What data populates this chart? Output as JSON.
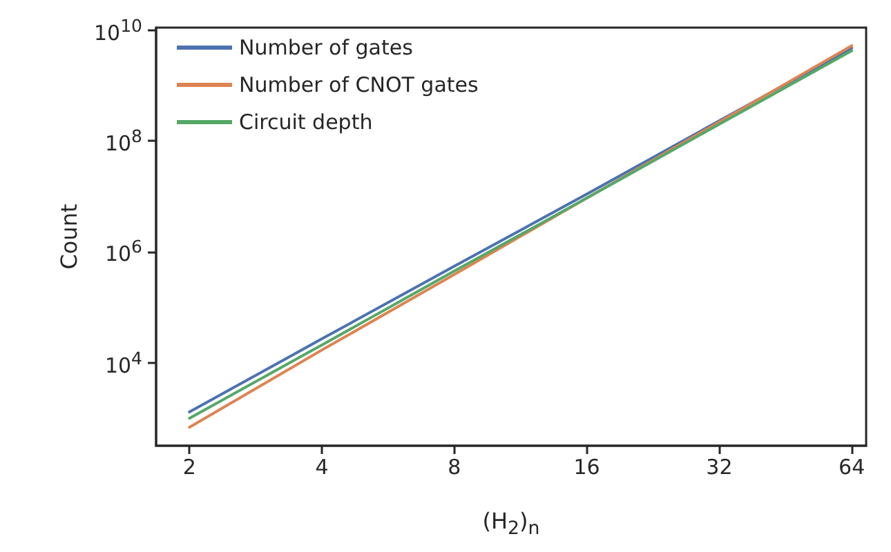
{
  "chart_data": {
    "type": "line",
    "xlabel": "(H$_{2}$)$_{n}$",
    "ylabel": "Count",
    "log": "xy",
    "legend": "top left",
    "x": [
      2,
      4,
      8,
      16,
      32,
      64
    ],
    "xlim": [
      1.68,
      69
    ],
    "xticks": [
      2,
      4,
      8,
      16,
      32,
      64
    ],
    "ylim": [
      320,
      11000000000
    ],
    "yticks": [
      {
        "value": 10000,
        "label": "10$^{4}$"
      },
      {
        "value": 1000000,
        "label": "10$^{6}$"
      },
      {
        "value": 100000000,
        "label": "10$^{8}$"
      },
      {
        "value": 10000000000,
        "label": "10$^{10}$"
      }
    ],
    "series": [
      {
        "name": "Number of gates",
        "color": "#4c72b0",
        "values": [
          1300,
          27000,
          550000,
          11000000,
          230000000,
          4700000000
        ]
      },
      {
        "name": "Number of CNOT gates",
        "color": "#dd8452",
        "values": [
          690,
          17000,
          390000,
          9300000,
          220000000,
          5200000000
        ]
      },
      {
        "name": "Circuit depth",
        "color": "#55a868",
        "values": [
          1000,
          21000,
          450000,
          9300000,
          200000000,
          4200000000
        ]
      }
    ]
  }
}
